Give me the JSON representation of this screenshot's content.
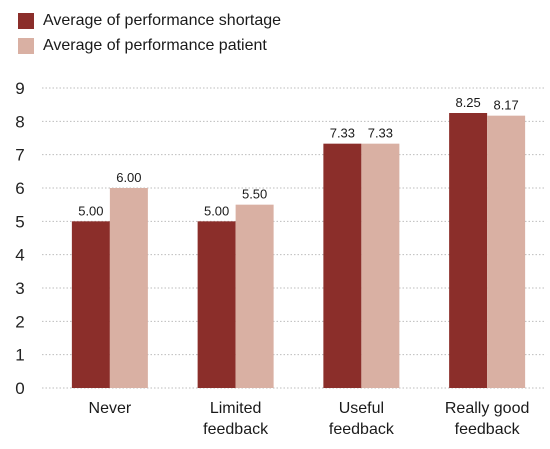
{
  "chart_data": {
    "type": "bar",
    "title": "",
    "xlabel": "",
    "ylabel": "",
    "categories": [
      [
        "Never"
      ],
      [
        "Limited",
        "feedback"
      ],
      [
        "Useful",
        "feedback"
      ],
      [
        "Really good",
        "feedback"
      ]
    ],
    "series": [
      {
        "name": "Average of performance shortage",
        "color": "#8b2e2a",
        "values": [
          5.0,
          5.0,
          7.33,
          8.25
        ],
        "labels": [
          "5.00",
          "5.00",
          "7.33",
          "8.25"
        ]
      },
      {
        "name": "Average of performance patient",
        "color": "#d9b0a3",
        "values": [
          6.0,
          5.5,
          7.33,
          8.17
        ],
        "labels": [
          "6.00",
          "5.50",
          "7.33",
          "8.17"
        ]
      }
    ],
    "ylim": [
      0,
      9
    ],
    "yticks": [
      "0",
      "1",
      "2",
      "3",
      "4",
      "5",
      "6",
      "7",
      "8",
      "9"
    ],
    "grid": true,
    "legend_position": "top-left"
  }
}
